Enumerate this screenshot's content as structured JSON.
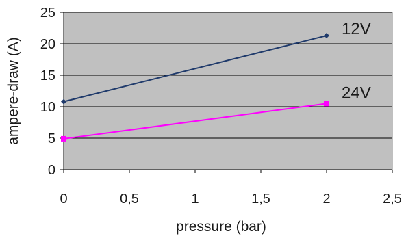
{
  "chart_data": {
    "type": "line",
    "title": "",
    "xlabel": "pressure (bar)",
    "ylabel": "ampere-draw (A)",
    "xlim": [
      0,
      2.5
    ],
    "ylim": [
      0,
      25
    ],
    "x_ticks": [
      "0",
      "0,5",
      "1",
      "1,5",
      "2",
      "2,5"
    ],
    "y_ticks": [
      "0",
      "5",
      "10",
      "15",
      "20",
      "25"
    ],
    "grid": "horizontal",
    "plot_background": "#c0c0c0",
    "series": [
      {
        "name": "12V",
        "color": "#1f3a6b",
        "marker": "diamond",
        "x": [
          0,
          2
        ],
        "y": [
          10.8,
          21.3
        ]
      },
      {
        "name": "24V",
        "color": "#ff00ff",
        "marker": "square",
        "x": [
          0,
          2
        ],
        "y": [
          4.9,
          10.5
        ]
      }
    ]
  }
}
